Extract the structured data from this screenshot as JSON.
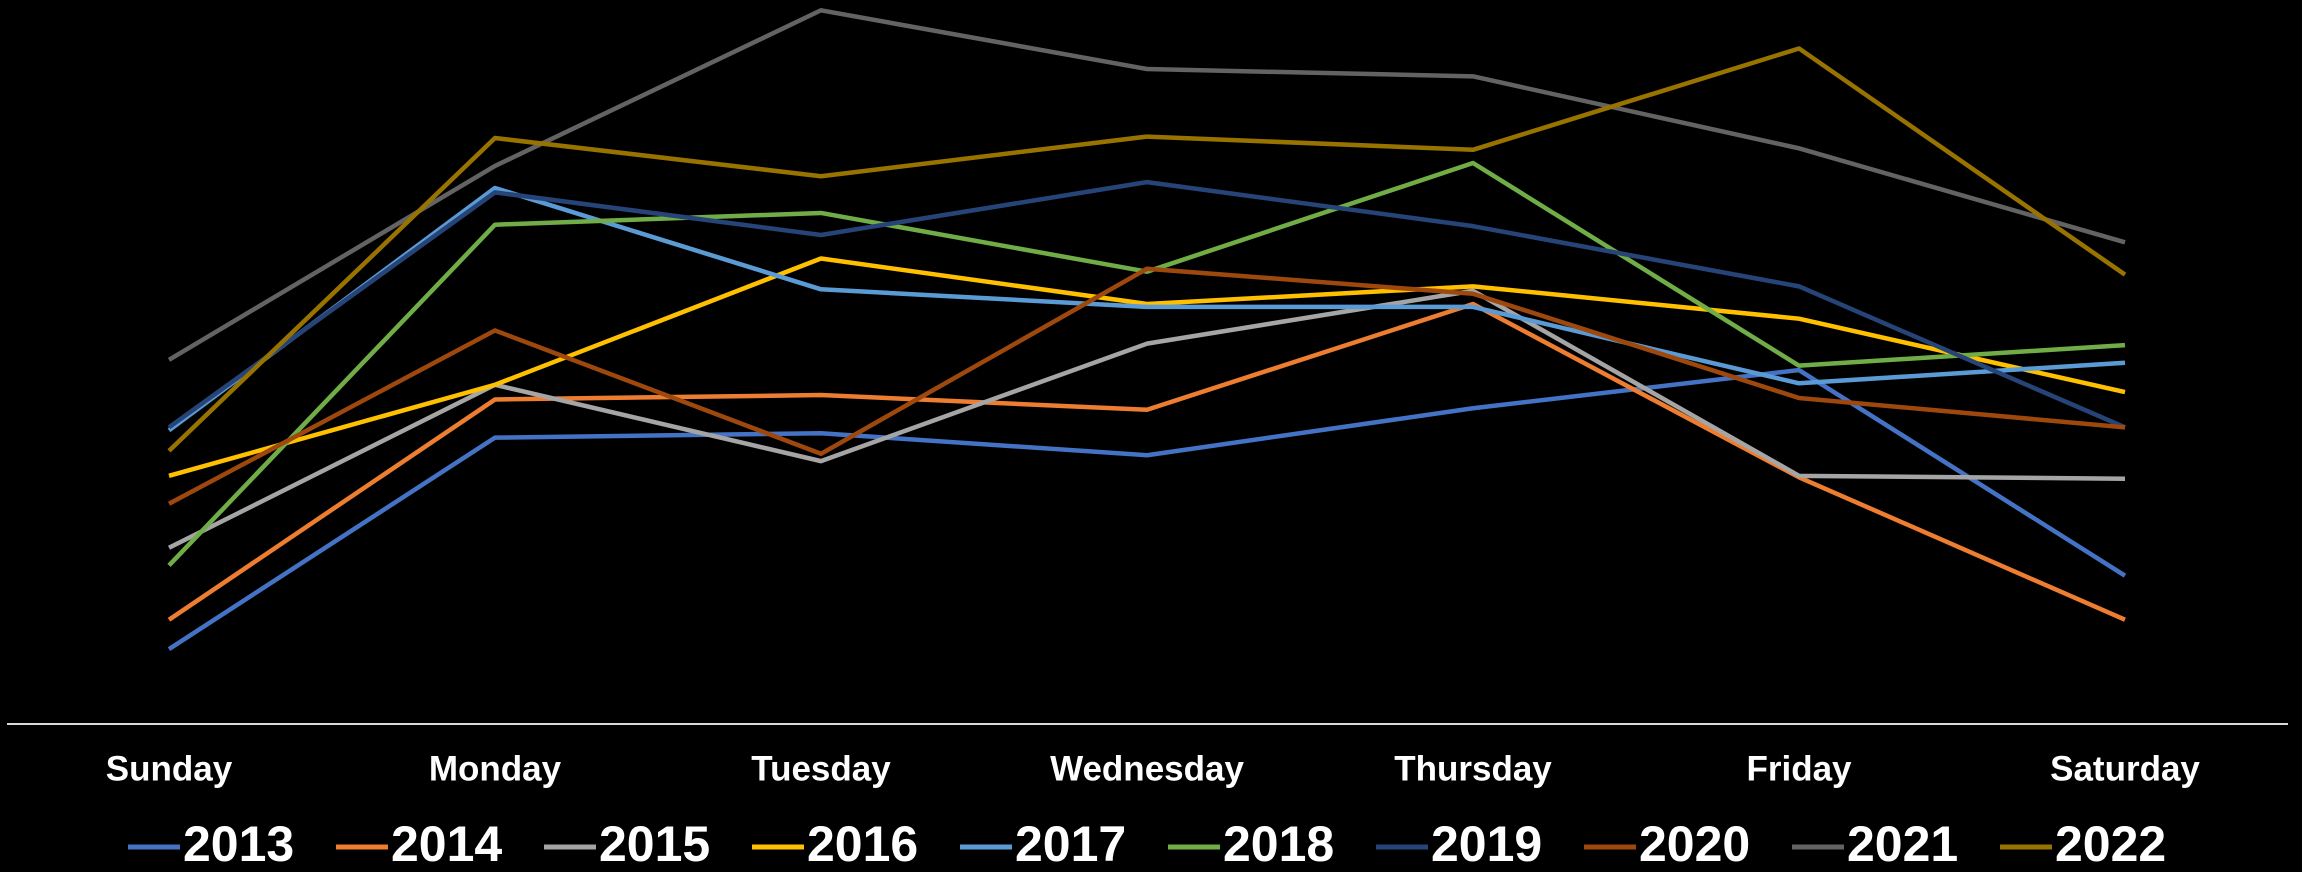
{
  "chart_data": {
    "type": "line",
    "categories": [
      "Sunday",
      "Monday",
      "Tuesday",
      "Wednesday",
      "Thursday",
      "Friday",
      "Saturday"
    ],
    "ylim": [
      0,
      493
    ],
    "series": [
      {
        "name": "2013",
        "color": "#4472c4",
        "values": [
          51,
          195,
          198,
          183,
          215,
          241,
          101
        ]
      },
      {
        "name": "2014",
        "color": "#ed7d31",
        "values": [
          71,
          221,
          224,
          214,
          286,
          168,
          71
        ]
      },
      {
        "name": "2015",
        "color": "#a5a5a5",
        "values": [
          120,
          231,
          179,
          259,
          295,
          169,
          167
        ]
      },
      {
        "name": "2016",
        "color": "#ffc000",
        "values": [
          169,
          231,
          317,
          286,
          298,
          276,
          226
        ]
      },
      {
        "name": "2017",
        "color": "#5b9bd5",
        "values": [
          200,
          365,
          296,
          284,
          284,
          232,
          246
        ]
      },
      {
        "name": "2018",
        "color": "#70ad47",
        "values": [
          108,
          340,
          348,
          308,
          382,
          244,
          258
        ]
      },
      {
        "name": "2019",
        "color": "#264478",
        "values": [
          202,
          362,
          333,
          369,
          339,
          298,
          202
        ]
      },
      {
        "name": "2020",
        "color": "#9e480e",
        "values": [
          150,
          268,
          184,
          310,
          293,
          222,
          202
        ]
      },
      {
        "name": "2021",
        "color": "#636363",
        "values": [
          248,
          380,
          486,
          446,
          441,
          392,
          328
        ]
      },
      {
        "name": "2022",
        "color": "#997300",
        "values": [
          186,
          399,
          373,
          400,
          391,
          460,
          306
        ]
      }
    ]
  }
}
